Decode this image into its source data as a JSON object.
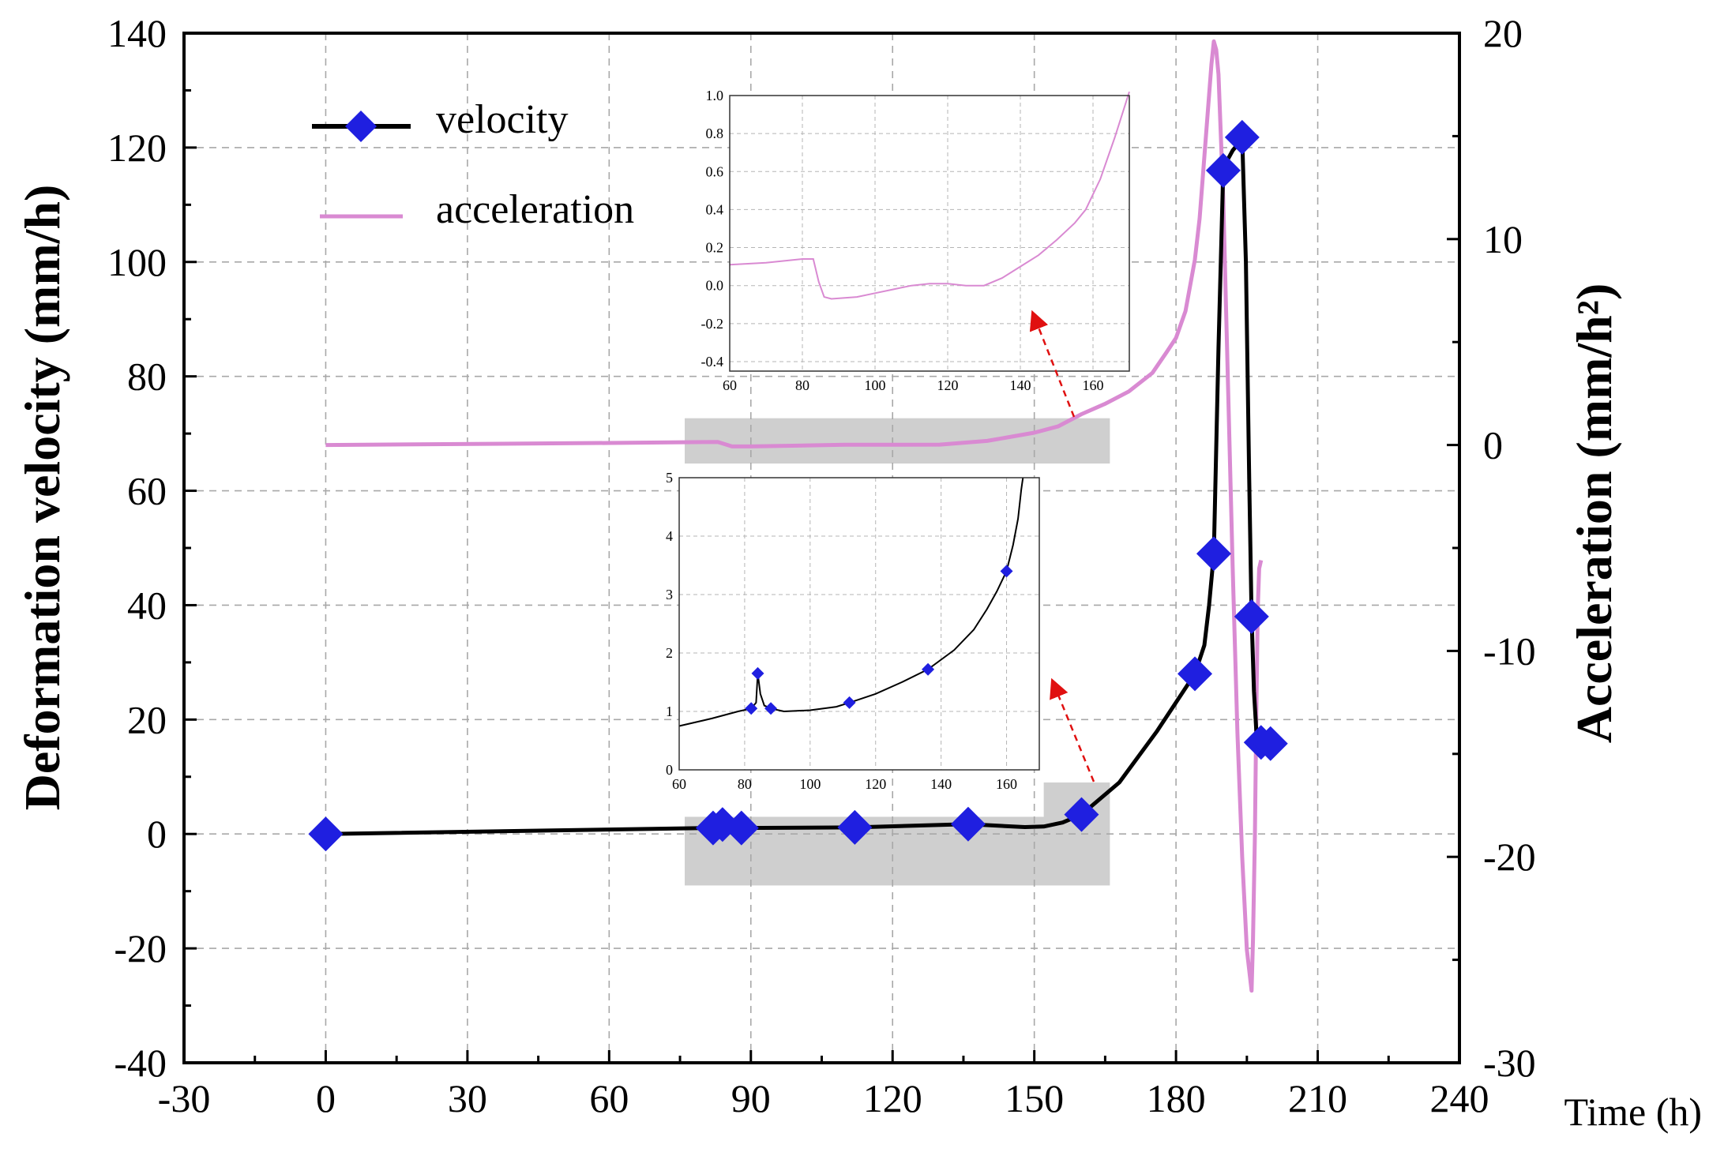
{
  "chart_data": [
    {
      "type": "line",
      "id": "main",
      "xlabel": "Time (h)",
      "ylabel": "Deformation velocity  (mm/h)",
      "y2label": "Acceleration  (mm/h²)",
      "xlim": [
        -30,
        240
      ],
      "ylim": [
        -40,
        140
      ],
      "y2lim": [
        -30,
        20
      ],
      "xticks": [
        "-30",
        "0",
        "30",
        "60",
        "90",
        "120",
        "150",
        "180",
        "210",
        "240"
      ],
      "yticks": [
        "-40",
        "-20",
        "0",
        "20",
        "40",
        "60",
        "80",
        "100",
        "120",
        "140"
      ],
      "y2ticks": [
        "-30",
        "-20",
        "-10",
        "0",
        "10",
        "20"
      ],
      "grid": true,
      "legend": {
        "position": "top-left",
        "entries": [
          {
            "name": "velocity",
            "color": "#000000",
            "marker": "#1f1fe0"
          },
          {
            "name": "acceleration",
            "color": "#d98ad2"
          }
        ]
      },
      "series": [
        {
          "name": "velocity",
          "axis": "left",
          "color": "#000000",
          "marker_color": "#1f1fe0",
          "x": [
            0,
            82,
            84,
            88,
            112,
            136,
            148,
            152,
            156,
            160,
            168,
            176,
            180,
            184,
            186,
            187,
            188,
            189,
            190,
            191,
            192,
            193,
            194,
            194.8,
            195.5,
            196,
            196.5,
            197,
            198,
            199,
            200
          ],
          "y": [
            0,
            1.05,
            1.65,
            1.05,
            1.15,
            1.72,
            1.2,
            1.3,
            2.0,
            3.4,
            9,
            18,
            23,
            28,
            33,
            40,
            49,
            85,
            116,
            118,
            119.5,
            120.5,
            121.8,
            100,
            62,
            38,
            25,
            18,
            16,
            15.8,
            15.8
          ],
          "markers": [
            {
              "x": 0,
              "y": 0
            },
            {
              "x": 82,
              "y": 1.05
            },
            {
              "x": 84,
              "y": 1.65
            },
            {
              "x": 88,
              "y": 1.05
            },
            {
              "x": 112,
              "y": 1.15
            },
            {
              "x": 136,
              "y": 1.72
            },
            {
              "x": 160,
              "y": 3.4
            },
            {
              "x": 184,
              "y": 28
            },
            {
              "x": 188,
              "y": 49
            },
            {
              "x": 190,
              "y": 116
            },
            {
              "x": 194,
              "y": 121.8
            },
            {
              "x": 196,
              "y": 38
            },
            {
              "x": 198,
              "y": 16
            },
            {
              "x": 200,
              "y": 15.8
            }
          ]
        },
        {
          "name": "acceleration",
          "axis": "right",
          "color": "#d98ad2",
          "x": [
            0,
            60,
            80,
            83,
            86,
            90,
            100,
            110,
            120,
            130,
            140,
            150,
            155,
            160,
            165,
            170,
            175,
            178,
            180,
            182,
            184,
            185,
            186,
            187,
            187.5,
            188,
            188.5,
            189,
            190,
            191,
            192,
            193,
            194,
            195,
            195.5,
            196,
            196.3,
            196.7,
            197,
            197.3,
            197.6,
            198
          ],
          "y": [
            0,
            0.1,
            0.14,
            0.15,
            -0.07,
            -0.07,
            -0.03,
            0.01,
            0.01,
            0.02,
            0.2,
            0.6,
            0.9,
            1.5,
            2.0,
            2.6,
            3.5,
            4.5,
            5.2,
            6.5,
            9,
            11,
            14,
            17,
            18.5,
            19.6,
            19.2,
            18,
            12,
            3,
            -6,
            -14,
            -20,
            -24.5,
            -25.5,
            -26.5,
            -24,
            -19,
            -13,
            -8,
            -6,
            -5.6
          ]
        }
      ],
      "highlight_regions": [
        {
          "x_range": [
            76,
            166
          ],
          "y_range": [
            -9,
            3
          ],
          "axis": "left"
        },
        {
          "x_range": [
            152,
            166
          ],
          "y_range": [
            3,
            9
          ],
          "axis": "left"
        },
        {
          "x_range": [
            76,
            166
          ],
          "y_range": [
            -0.9,
            1.3
          ],
          "axis": "right"
        }
      ]
    },
    {
      "type": "line",
      "id": "inset-acceleration",
      "title": "",
      "xlim": [
        60,
        170
      ],
      "ylim": [
        -0.45,
        1.0
      ],
      "xticks": [
        "60",
        "80",
        "100",
        "120",
        "140",
        "160"
      ],
      "yticks": [
        "-0.4",
        "-0.2",
        "0.0",
        "0.2",
        "0.4",
        "0.6",
        "0.8",
        "1.0"
      ],
      "grid": true,
      "series": [
        {
          "name": "acceleration",
          "color": "#d98ad2",
          "x": [
            60,
            70,
            80,
            83,
            84.5,
            86,
            88,
            95,
            100,
            105,
            110,
            115,
            120,
            125,
            130,
            135,
            140,
            145,
            150,
            155,
            158,
            162,
            166,
            170
          ],
          "y": [
            0.11,
            0.12,
            0.14,
            0.14,
            0.02,
            -0.06,
            -0.07,
            -0.06,
            -0.04,
            -0.02,
            0.0,
            0.01,
            0.01,
            0.0,
            0.0,
            0.04,
            0.1,
            0.16,
            0.24,
            0.33,
            0.4,
            0.56,
            0.78,
            1.02
          ]
        }
      ]
    },
    {
      "type": "line",
      "id": "inset-velocity",
      "title": "",
      "xlim": [
        60,
        170
      ],
      "ylim": [
        0,
        5
      ],
      "xticks": [
        "60",
        "80",
        "100",
        "120",
        "140",
        "160"
      ],
      "yticks": [
        "0",
        "1",
        "2",
        "3",
        "4",
        "5"
      ],
      "grid": true,
      "series": [
        {
          "name": "velocity",
          "color": "#000000",
          "marker_color": "#1f1fe0",
          "x": [
            60,
            70,
            78,
            82,
            83.5,
            84,
            84.8,
            86,
            88,
            92,
            100,
            108,
            112,
            120,
            128,
            136,
            144,
            150,
            154,
            157,
            160,
            162,
            163.5,
            164.5,
            165
          ],
          "y": [
            0.75,
            0.88,
            1.0,
            1.05,
            1.15,
            1.65,
            1.3,
            1.1,
            1.05,
            1.0,
            1.02,
            1.08,
            1.15,
            1.3,
            1.5,
            1.72,
            2.05,
            2.4,
            2.75,
            3.05,
            3.4,
            3.85,
            4.3,
            4.8,
            5.0
          ],
          "markers": [
            {
              "x": 82,
              "y": 1.05
            },
            {
              "x": 84,
              "y": 1.65
            },
            {
              "x": 88,
              "y": 1.05
            },
            {
              "x": 112,
              "y": 1.15
            },
            {
              "x": 136,
              "y": 1.72
            },
            {
              "x": 160,
              "y": 3.4
            }
          ]
        }
      ]
    }
  ]
}
